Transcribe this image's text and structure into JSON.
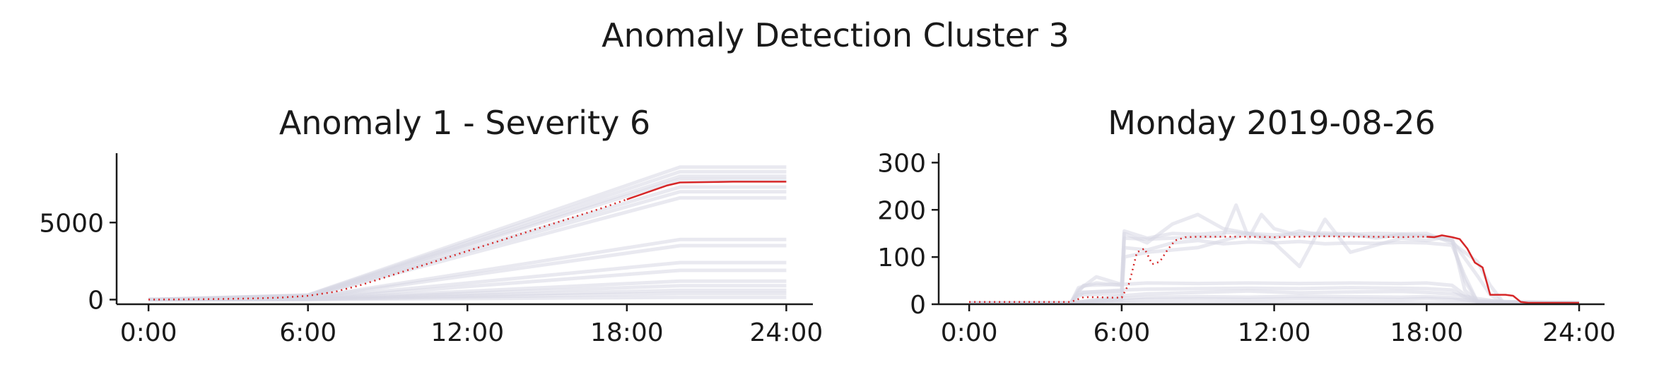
{
  "figure_title": "Anomaly Detection Cluster 3",
  "colors": {
    "highlight": "#d62728",
    "background_series": "#d7d7e3",
    "axis": "#1a1a1a"
  },
  "chart_data": [
    {
      "type": "line",
      "title": "Anomaly 1 - Severity 6",
      "xlabel": "",
      "ylabel": "",
      "x_ticks": [
        0,
        6,
        12,
        18,
        24
      ],
      "x_tick_labels": [
        "0:00",
        "6:00",
        "12:00",
        "18:00",
        "24:00"
      ],
      "y_ticks": [
        0,
        5000
      ],
      "y_tick_labels": [
        "0",
        "5000"
      ],
      "xlim": [
        -1.2,
        25
      ],
      "ylim": [
        -300,
        9500
      ],
      "grid": false,
      "highlight": {
        "x": [
          0,
          1,
          2,
          3,
          4,
          5,
          6,
          7,
          8,
          9,
          10,
          11,
          12,
          13,
          14,
          15,
          16,
          17,
          18,
          18.5,
          19,
          19.5,
          20,
          22,
          24
        ],
        "y": [
          0,
          10,
          25,
          50,
          80,
          130,
          250,
          500,
          950,
          1500,
          2050,
          2600,
          3150,
          3700,
          4250,
          4800,
          5350,
          5900,
          6500,
          6800,
          7100,
          7400,
          7600,
          7650,
          7650
        ],
        "solid_from_x": 18,
        "style_before": "dotted",
        "style_after": "solid"
      },
      "background_series": [
        {
          "x": [
            0,
            6,
            20,
            24
          ],
          "y": [
            0,
            300,
            8600,
            8600
          ]
        },
        {
          "x": [
            0,
            6,
            20,
            24
          ],
          "y": [
            0,
            280,
            8300,
            8300
          ]
        },
        {
          "x": [
            0,
            6,
            20,
            24
          ],
          "y": [
            0,
            260,
            8000,
            8000
          ]
        },
        {
          "x": [
            0,
            6,
            20,
            24
          ],
          "y": [
            0,
            250,
            7800,
            7800
          ]
        },
        {
          "x": [
            0,
            6,
            20,
            24
          ],
          "y": [
            0,
            220,
            7300,
            7300
          ]
        },
        {
          "x": [
            0,
            6,
            20,
            24
          ],
          "y": [
            0,
            200,
            7000,
            7000
          ]
        },
        {
          "x": [
            0,
            6,
            20,
            24
          ],
          "y": [
            0,
            180,
            6600,
            6600
          ]
        },
        {
          "x": [
            0,
            6,
            20,
            24
          ],
          "y": [
            0,
            120,
            3900,
            3900
          ]
        },
        {
          "x": [
            0,
            6,
            20,
            24
          ],
          "y": [
            0,
            100,
            3500,
            3500
          ]
        },
        {
          "x": [
            0,
            6,
            20,
            24
          ],
          "y": [
            0,
            80,
            2400,
            2400
          ]
        },
        {
          "x": [
            0,
            6,
            20,
            24
          ],
          "y": [
            0,
            60,
            1900,
            1900
          ]
        },
        {
          "x": [
            0,
            6,
            20,
            24
          ],
          "y": [
            0,
            40,
            1200,
            1200
          ]
        },
        {
          "x": [
            0,
            6,
            20,
            24
          ],
          "y": [
            0,
            30,
            900,
            900
          ]
        },
        {
          "x": [
            0,
            6,
            20,
            24
          ],
          "y": [
            0,
            20,
            600,
            600
          ]
        },
        {
          "x": [
            0,
            6,
            20,
            24
          ],
          "y": [
            0,
            15,
            400,
            400
          ]
        },
        {
          "x": [
            0,
            6,
            20,
            24
          ],
          "y": [
            0,
            10,
            150,
            150
          ]
        }
      ]
    },
    {
      "type": "line",
      "title": "Monday 2019-08-26",
      "xlabel": "",
      "ylabel": "",
      "x_ticks": [
        0,
        6,
        12,
        18,
        24
      ],
      "x_tick_labels": [
        "0:00",
        "6:00",
        "12:00",
        "18:00",
        "24:00"
      ],
      "y_ticks": [
        0,
        100,
        200,
        300
      ],
      "y_tick_labels": [
        "0",
        "100",
        "200",
        "300"
      ],
      "xlim": [
        -1.2,
        25
      ],
      "ylim": [
        0,
        320
      ],
      "grid": false,
      "highlight": {
        "x": [
          0,
          3,
          4,
          4.5,
          5,
          5.5,
          6,
          6.3,
          6.6,
          6.9,
          7.2,
          7.5,
          7.8,
          8.1,
          8.5,
          9,
          10,
          11,
          12,
          13,
          14,
          15,
          16,
          17,
          17.5,
          18,
          18.3,
          18.6,
          19,
          19.3,
          19.6,
          19.9,
          20.2,
          20.5,
          20.8,
          21.1,
          21.4,
          21.7,
          22,
          23,
          24
        ],
        "y": [
          5,
          5,
          5,
          15,
          15,
          14,
          14,
          45,
          110,
          118,
          85,
          90,
          115,
          135,
          142,
          143,
          143,
          143,
          142,
          143,
          144,
          143,
          143,
          142,
          143,
          143,
          142,
          146,
          142,
          138,
          118,
          88,
          78,
          20,
          20,
          20,
          18,
          5,
          3,
          3,
          3
        ],
        "solid_from_x": 18,
        "style_before": "dotted",
        "style_after": "solid"
      },
      "background_series": [
        {
          "x": [
            0,
            4,
            4.3,
            5,
            6,
            6.1,
            7,
            8,
            9,
            10,
            11,
            12,
            13,
            14,
            15,
            16,
            17,
            18,
            19,
            20,
            20.5,
            21,
            24
          ],
          "y": [
            3,
            3,
            35,
            45,
            40,
            155,
            140,
            150,
            148,
            152,
            150,
            147,
            149,
            151,
            148,
            150,
            149,
            150,
            130,
            90,
            40,
            5,
            3
          ]
        },
        {
          "x": [
            0,
            4,
            4.3,
            5,
            6,
            6.1,
            7,
            8,
            9,
            10,
            11,
            12,
            13,
            14,
            15,
            16,
            17,
            18,
            19,
            20,
            20.5,
            21,
            24
          ],
          "y": [
            3,
            3,
            30,
            58,
            42,
            150,
            130,
            170,
            190,
            160,
            150,
            140,
            155,
            145,
            150,
            140,
            148,
            145,
            135,
            60,
            20,
            5,
            3
          ]
        },
        {
          "x": [
            0,
            4,
            4.3,
            6,
            6.1,
            7,
            8,
            9,
            10,
            10.5,
            11,
            11.5,
            12,
            13,
            14,
            15,
            16,
            17,
            18,
            19,
            19.5,
            20,
            24
          ],
          "y": [
            3,
            3,
            20,
            22,
            140,
            138,
            140,
            142,
            145,
            210,
            140,
            190,
            160,
            145,
            148,
            146,
            143,
            145,
            144,
            140,
            30,
            5,
            3
          ]
        },
        {
          "x": [
            0,
            4,
            4.3,
            6,
            6.1,
            7,
            8,
            9,
            10,
            11,
            12,
            13,
            14,
            15,
            16,
            17,
            18,
            19,
            19.5,
            20,
            24
          ],
          "y": [
            3,
            3,
            25,
            28,
            120,
            115,
            130,
            135,
            128,
            132,
            130,
            133,
            128,
            130,
            129,
            131,
            130,
            125,
            60,
            5,
            3
          ]
        },
        {
          "x": [
            0,
            4,
            6,
            6.1,
            7,
            9,
            11,
            12,
            13,
            14,
            15,
            17,
            18,
            18.5,
            19,
            19.5,
            20,
            24
          ],
          "y": [
            3,
            3,
            10,
            100,
            110,
            120,
            150,
            130,
            80,
            180,
            110,
            140,
            135,
            140,
            135,
            50,
            5,
            3
          ]
        },
        {
          "x": [
            0,
            4,
            4.5,
            6,
            7,
            9,
            11,
            13,
            15,
            17,
            18,
            19,
            19.5,
            20,
            24
          ],
          "y": [
            3,
            3,
            40,
            42,
            45,
            44,
            45,
            44,
            45,
            44,
            45,
            40,
            20,
            5,
            3
          ]
        },
        {
          "x": [
            0,
            4,
            4.5,
            6,
            7,
            9,
            11,
            13,
            15,
            17,
            18,
            19,
            19.5,
            20,
            24
          ],
          "y": [
            3,
            3,
            25,
            30,
            32,
            33,
            34,
            33,
            35,
            34,
            33,
            30,
            15,
            5,
            3
          ]
        },
        {
          "x": [
            0,
            4,
            5,
            6,
            7,
            9,
            11,
            13,
            15,
            17,
            18,
            19,
            20,
            21,
            24
          ],
          "y": [
            3,
            3,
            10,
            18,
            22,
            25,
            28,
            24,
            26,
            27,
            25,
            22,
            12,
            5,
            3
          ]
        },
        {
          "x": [
            0,
            4,
            5,
            6,
            7,
            9,
            11,
            13,
            15,
            17,
            18,
            19,
            20,
            24
          ],
          "y": [
            3,
            3,
            8,
            12,
            15,
            16,
            15,
            17,
            16,
            15,
            16,
            14,
            5,
            3
          ]
        },
        {
          "x": [
            0,
            4,
            5,
            6,
            7,
            9,
            11,
            13,
            15,
            17,
            18,
            19,
            20,
            22,
            24
          ],
          "y": [
            3,
            3,
            6,
            8,
            10,
            11,
            10,
            12,
            11,
            10,
            12,
            10,
            8,
            4,
            3
          ]
        },
        {
          "x": [
            0,
            24
          ],
          "y": [
            3,
            3
          ]
        }
      ]
    }
  ]
}
